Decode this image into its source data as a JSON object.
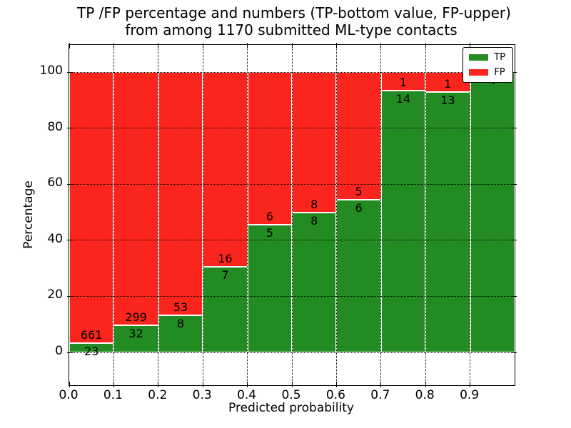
{
  "chart_data": {
    "type": "bar",
    "stacked": true,
    "title_lines": [
      "TP /FP percentage and numbers (TP-bottom value, FP-upper)",
      "from among 1170 submitted ML-type contacts"
    ],
    "total_submitted": 1170,
    "xlabel": "Predicted probability",
    "ylabel": "Percentage",
    "x_tick_labels": [
      "0.0",
      "0.1",
      "0.2",
      "0.3",
      "0.4",
      "0.5",
      "0.6",
      "0.7",
      "0.8",
      "0.9"
    ],
    "y_tick_values": [
      0,
      20,
      40,
      60,
      80,
      100
    ],
    "xlim": [
      0.0,
      1.0
    ],
    "ylim": [
      -12,
      110
    ],
    "bar_width": 0.1,
    "grid": {
      "visible": true,
      "style": "dotted"
    },
    "bin_edges": [
      0.0,
      0.1,
      0.2,
      0.3,
      0.4,
      0.5,
      0.6,
      0.7,
      0.8,
      0.9,
      1.0
    ],
    "series": [
      {
        "name": "TP",
        "position": "bottom",
        "color": "#228b22",
        "values": [
          23,
          32,
          8,
          7,
          5,
          8,
          6,
          14,
          13,
          4
        ]
      },
      {
        "name": "FP",
        "position": "top",
        "color": "#fa251c",
        "values": [
          661,
          299,
          53,
          16,
          6,
          8,
          5,
          1,
          1,
          0
        ]
      }
    ],
    "tp_percent_of_bin": [
      3.4,
      9.7,
      13.1,
      30.4,
      45.5,
      50.0,
      54.5,
      93.3,
      92.9,
      100.0
    ],
    "legend": {
      "position": "upper right",
      "entries": [
        {
          "label": "TP",
          "color": "#228b22"
        },
        {
          "label": "FP",
          "color": "#fa251c"
        }
      ]
    }
  },
  "colors": {
    "background": "#ffffff",
    "frame": "#000000",
    "grid": "#000000",
    "bar_edge": "#ffffff",
    "text": "#000000",
    "tp_green": "#228b22",
    "fp_red": "#fa251c"
  }
}
